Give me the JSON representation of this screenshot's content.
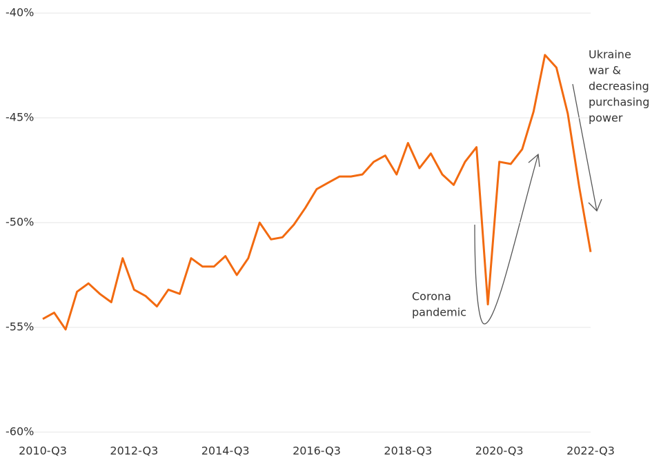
{
  "chart_data": {
    "type": "line",
    "categories": [
      "2010-Q3",
      null,
      null,
      null,
      null,
      null,
      null,
      null,
      "2012-Q3",
      null,
      null,
      null,
      null,
      null,
      null,
      null,
      "2014-Q3",
      null,
      null,
      null,
      null,
      null,
      null,
      null,
      "2016-Q3",
      null,
      null,
      null,
      null,
      null,
      null,
      null,
      "2018-Q3",
      null,
      null,
      null,
      null,
      null,
      null,
      null,
      "2020-Q3",
      null,
      null,
      null,
      null,
      null,
      null,
      null,
      "2022-Q3"
    ],
    "values": [
      -54.6,
      -54.3,
      -55.1,
      -53.3,
      -52.9,
      -53.4,
      -53.8,
      -51.7,
      -53.2,
      -53.5,
      -54.0,
      -53.2,
      -53.4,
      -51.7,
      -52.1,
      -52.1,
      -51.6,
      -52.5,
      -51.7,
      -50.0,
      -50.8,
      -50.7,
      -50.1,
      -49.3,
      -48.4,
      -48.1,
      -47.8,
      -47.8,
      -47.7,
      -47.1,
      -46.8,
      -47.7,
      -46.2,
      -47.4,
      -46.7,
      -47.7,
      -48.2,
      -47.1,
      -46.4,
      -53.9,
      -47.1,
      -47.2,
      -46.5,
      -44.7,
      -42.0,
      -42.6,
      -44.8,
      -48.3,
      -51.4
    ],
    "color": "#f26a10",
    "ylim": [
      -60,
      -40
    ],
    "yticks": [
      {
        "value": -40,
        "label": "-40%"
      },
      {
        "value": -45,
        "label": "-45%"
      },
      {
        "value": -50,
        "label": "-50%"
      },
      {
        "value": -55,
        "label": "-55%"
      },
      {
        "value": -60,
        "label": "-60%"
      }
    ],
    "grid": true,
    "annotations": [
      {
        "lines": [
          "Corona",
          "pandemic"
        ]
      },
      {
        "lines": [
          "Ukraine",
          "war &",
          "decreasing",
          "purchasing",
          "power"
        ]
      }
    ]
  }
}
